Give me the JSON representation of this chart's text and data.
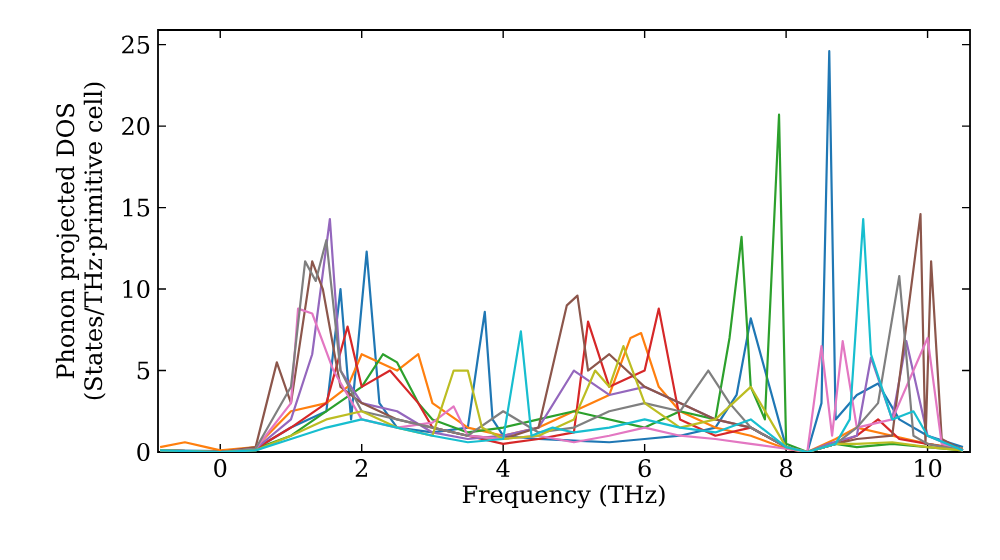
{
  "chart_data": {
    "type": "line",
    "xlabel": "Frequency (THz)",
    "ylabel": "Phonon projected DOS (States/THz·primitive cell)",
    "xlim": [
      -0.88,
      10.6
    ],
    "ylim": [
      0,
      25.9
    ],
    "xticks": [
      0,
      2,
      4,
      6,
      8,
      10
    ],
    "yticks": [
      0,
      5,
      10,
      15,
      20,
      25
    ],
    "series": [
      {
        "color": "#1f77b4",
        "x": [
          -0.85,
          0,
          0.5,
          1.0,
          1.5,
          1.7,
          1.85,
          2.07,
          2.25,
          2.5,
          3.0,
          3.5,
          3.65,
          3.74,
          3.85,
          4.0,
          4.5,
          5.0,
          5.5,
          6.0,
          6.5,
          7.0,
          7.3,
          7.5,
          8.0,
          8.3,
          8.5,
          8.61,
          8.7,
          9.0,
          9.3,
          9.6,
          10.0,
          10.5
        ],
        "values": [
          0.1,
          0.05,
          0.2,
          1.5,
          2.5,
          10,
          2,
          12.3,
          3,
          1.5,
          1.2,
          1.5,
          6,
          8.6,
          2,
          1,
          0.8,
          0.7,
          0.6,
          0.8,
          1,
          1.5,
          3.5,
          8.2,
          0.3,
          0,
          3,
          24.6,
          2,
          3.5,
          4.2,
          2,
          1,
          0.3
        ]
      },
      {
        "color": "#ff7f0e",
        "x": [
          -0.85,
          -0.5,
          -0.2,
          0,
          0.5,
          1.0,
          1.5,
          1.8,
          2.0,
          2.5,
          2.8,
          3.0,
          3.5,
          4.0,
          4.5,
          5.0,
          5.5,
          5.8,
          5.95,
          6.2,
          6.5,
          7.0,
          7.5,
          8.0,
          8.3,
          8.7,
          9.0,
          9.5,
          10.0,
          10.5
        ],
        "values": [
          0.3,
          0.6,
          0.3,
          0.1,
          0.3,
          2.5,
          3,
          4,
          6,
          5,
          6,
          3,
          1.5,
          1,
          1.5,
          2.5,
          3.5,
          7,
          7.3,
          4,
          2.5,
          1.5,
          1,
          0.2,
          0,
          0.8,
          1.5,
          1,
          0.5,
          0.2
        ]
      },
      {
        "color": "#2ca02c",
        "x": [
          -0.85,
          0,
          0.5,
          1.0,
          1.5,
          2.0,
          2.3,
          2.5,
          2.8,
          3.0,
          3.5,
          4.0,
          4.5,
          5.0,
          5.5,
          6.0,
          6.5,
          7.0,
          7.2,
          7.37,
          7.5,
          7.7,
          7.9,
          8.0,
          8.3,
          8.7,
          9.0,
          9.5,
          10.0,
          10.5
        ],
        "values": [
          0.1,
          0,
          0.2,
          1,
          2.5,
          4,
          6,
          5.5,
          3,
          2,
          1.2,
          1.5,
          2,
          2.5,
          2,
          1.5,
          2.5,
          2,
          7,
          13.2,
          4,
          2,
          20.7,
          0.5,
          0,
          0.5,
          0.3,
          0.5,
          0.3,
          0.1
        ]
      },
      {
        "color": "#d62728",
        "x": [
          -0.85,
          0,
          0.5,
          1.0,
          1.5,
          1.8,
          2.0,
          2.4,
          2.8,
          3.0,
          3.5,
          4.0,
          4.5,
          5.0,
          5.2,
          5.5,
          6.0,
          6.2,
          6.5,
          7.0,
          7.5,
          8.0,
          8.3,
          8.7,
          9.0,
          9.3,
          9.6,
          10.0,
          10.5
        ],
        "values": [
          0.1,
          0,
          0.2,
          1.5,
          3,
          7.7,
          4,
          5,
          3,
          1.5,
          1,
          0.5,
          0.8,
          1.2,
          8,
          4,
          5,
          8.8,
          2,
          1,
          1.5,
          0.3,
          0,
          0.5,
          1,
          2,
          0.8,
          0.5,
          0.1
        ]
      },
      {
        "color": "#9467bd",
        "x": [
          -0.85,
          0,
          0.5,
          1.0,
          1.3,
          1.55,
          1.7,
          2.0,
          2.5,
          3.0,
          3.5,
          4.0,
          4.5,
          5.0,
          5.5,
          6.0,
          6.5,
          7.0,
          7.5,
          8.0,
          8.3,
          8.6,
          9.0,
          9.2,
          9.5,
          9.7,
          10.0,
          10.5
        ],
        "values": [
          0.1,
          0,
          0.2,
          2,
          6,
          14.3,
          5,
          3,
          2.5,
          1.2,
          0.8,
          1,
          1.5,
          5,
          3.5,
          4,
          3,
          2,
          1.5,
          0.3,
          0,
          0.5,
          1,
          5.8,
          2,
          6.8,
          1,
          0.1
        ]
      },
      {
        "color": "#8c564b",
        "x": [
          -0.85,
          0,
          0.5,
          0.8,
          1.0,
          1.3,
          1.45,
          1.7,
          2.0,
          2.5,
          3.0,
          3.5,
          4.0,
          4.5,
          4.9,
          5.05,
          5.2,
          5.5,
          6.0,
          6.5,
          7.0,
          7.5,
          8.0,
          8.3,
          8.7,
          9.0,
          9.5,
          9.9,
          9.97,
          10.05,
          10.2,
          10.5
        ],
        "values": [
          0.1,
          0,
          0.3,
          5.5,
          3,
          11.7,
          10,
          4,
          3,
          2,
          1.5,
          1,
          0.8,
          1.5,
          9,
          9.6,
          5,
          6,
          4,
          3,
          2,
          1.5,
          0.3,
          0,
          0.5,
          0.8,
          1,
          14.6,
          0.5,
          11.7,
          0.8,
          0.1
        ]
      },
      {
        "color": "#e377c2",
        "x": [
          -0.85,
          0,
          0.5,
          1.0,
          1.1,
          1.3,
          1.6,
          2.0,
          2.5,
          3.0,
          3.3,
          3.5,
          4.0,
          4.5,
          5.0,
          5.5,
          6.0,
          6.5,
          7.0,
          7.5,
          8.0,
          8.3,
          8.5,
          8.65,
          8.8,
          9.0,
          9.5,
          9.8,
          10.0,
          10.2,
          10.5
        ],
        "values": [
          0.1,
          0,
          0.2,
          3,
          8.8,
          8.5,
          5,
          2,
          1.5,
          1.8,
          2.8,
          1,
          0.8,
          1,
          0.6,
          1,
          1.5,
          1,
          0.8,
          0.5,
          0.2,
          0,
          6.5,
          1,
          6.8,
          1.5,
          2,
          5,
          7,
          0.5,
          0.1
        ]
      },
      {
        "color": "#7f7f7f",
        "x": [
          -0.85,
          0,
          0.5,
          1.0,
          1.2,
          1.35,
          1.5,
          1.7,
          2.0,
          2.5,
          3.0,
          3.5,
          4.0,
          4.5,
          5.0,
          5.5,
          6.0,
          6.5,
          6.9,
          7.2,
          7.5,
          8.0,
          8.3,
          8.7,
          9.0,
          9.3,
          9.6,
          9.8,
          10.0,
          10.5
        ],
        "values": [
          0.1,
          0,
          0.2,
          4,
          11.7,
          10.5,
          13,
          5,
          2.5,
          2,
          1.5,
          1,
          2.5,
          1.2,
          1.5,
          2.5,
          3,
          2.5,
          5,
          3,
          1.5,
          0.3,
          0,
          0.5,
          1.5,
          3,
          10.8,
          1,
          0.5,
          0.1
        ]
      },
      {
        "color": "#bcbd22",
        "x": [
          -0.85,
          0,
          0.5,
          1.0,
          1.5,
          2.0,
          2.5,
          3.0,
          3.3,
          3.5,
          3.7,
          4.0,
          4.5,
          5.0,
          5.3,
          5.5,
          5.7,
          6.0,
          6.5,
          7.0,
          7.5,
          8.0,
          8.3,
          8.7,
          9.0,
          9.5,
          10.0,
          10.5
        ],
        "values": [
          0.1,
          0,
          0.1,
          1,
          2,
          2.5,
          1.5,
          1,
          5,
          5,
          1.5,
          0.8,
          1,
          2,
          5,
          4,
          6.5,
          3,
          1.5,
          2,
          4,
          0.3,
          0,
          0.5,
          0.5,
          0.6,
          0.3,
          0.1
        ]
      },
      {
        "color": "#17becf",
        "x": [
          -0.85,
          0,
          0.5,
          1.0,
          1.5,
          2.0,
          2.5,
          3.0,
          3.5,
          4.0,
          4.25,
          4.4,
          4.7,
          5.0,
          5.5,
          6.0,
          6.5,
          7.0,
          7.5,
          8.0,
          8.3,
          8.7,
          8.9,
          9.09,
          9.2,
          9.5,
          9.8,
          10.0,
          10.5
        ],
        "values": [
          0.1,
          0,
          0.1,
          0.8,
          1.5,
          2,
          1.5,
          1,
          0.6,
          0.8,
          7.4,
          1,
          1.5,
          1.2,
          1.5,
          2,
          1.5,
          1.2,
          2,
          0.3,
          0,
          0.5,
          2,
          14.3,
          6,
          2,
          2.5,
          1,
          0.1
        ]
      }
    ]
  }
}
